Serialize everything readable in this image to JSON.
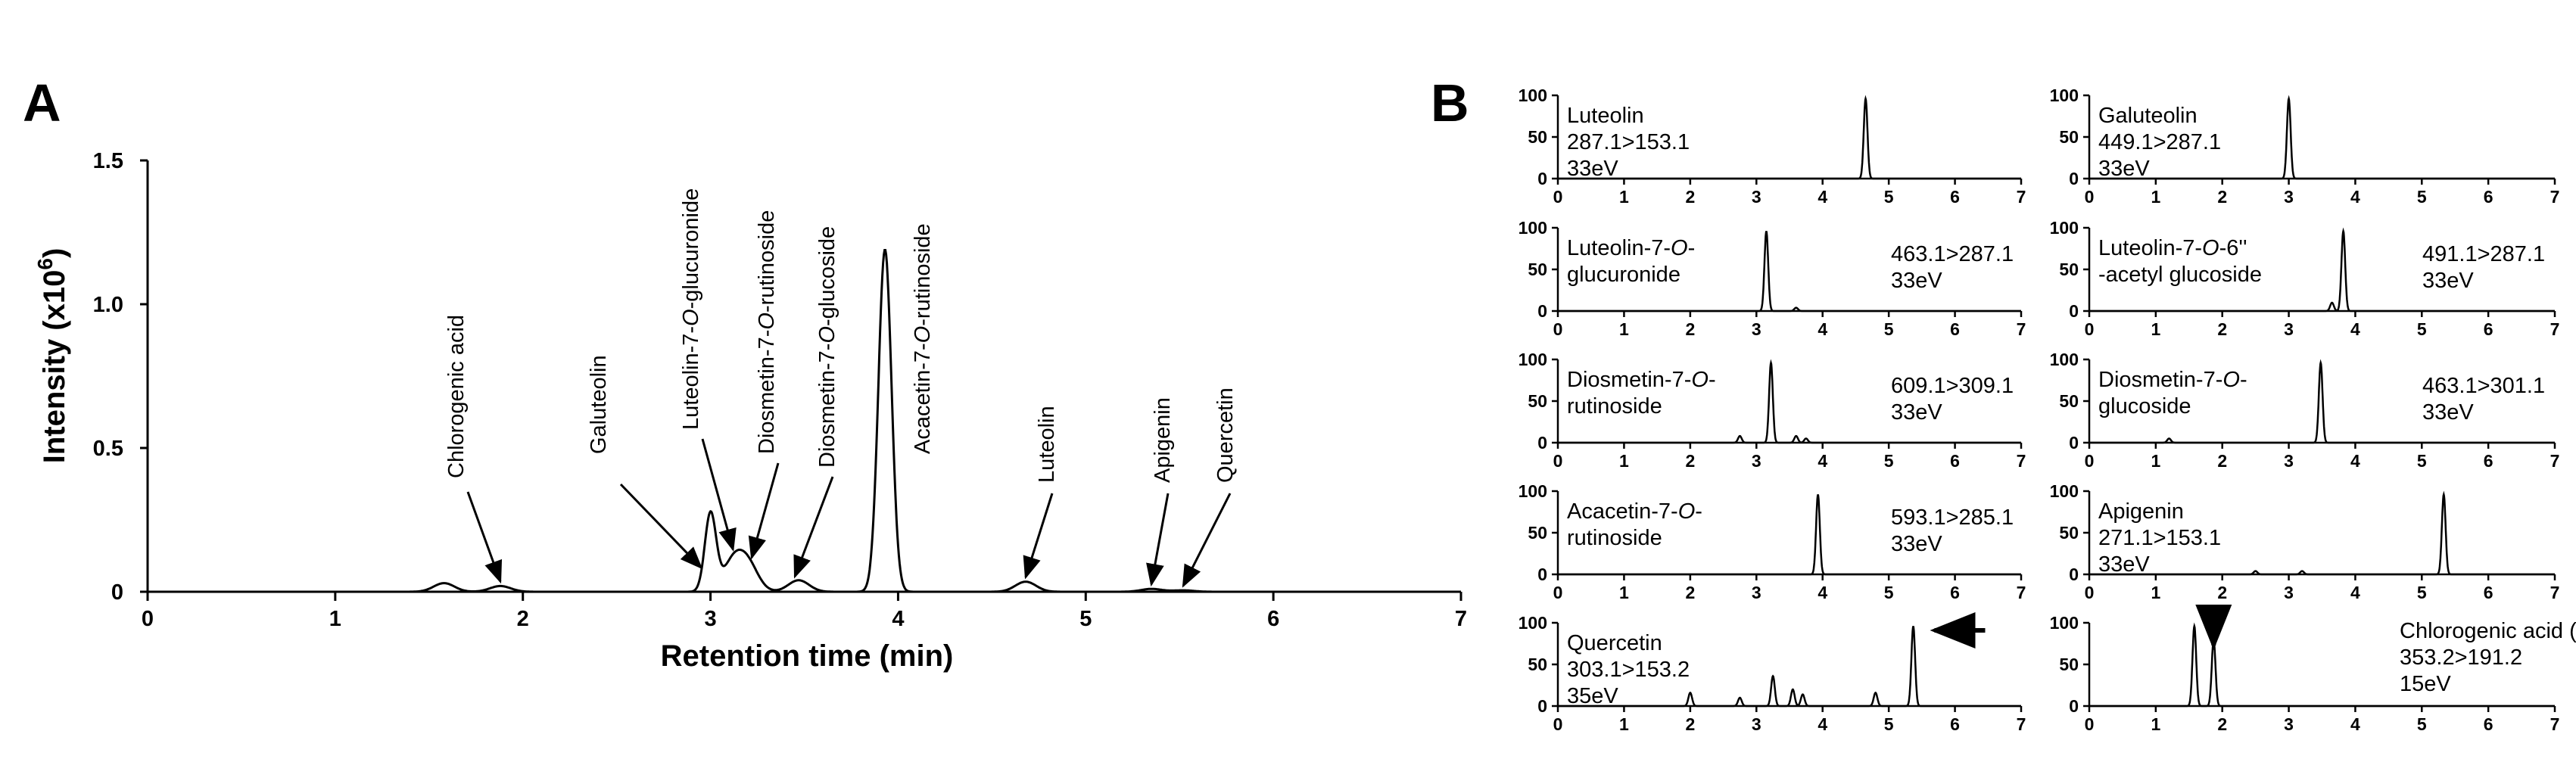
{
  "panels": {
    "a": {
      "letter": "A",
      "chart_data": {
        "type": "line",
        "title": "",
        "xlabel": "Retention time (min)",
        "ylabel": "Intensity (x10",
        "ylabel_sup": "6",
        "ylabel_close": ")",
        "xlim": [
          0,
          7
        ],
        "ylim": [
          0,
          1.5
        ],
        "x_ticks": [
          "0",
          "1",
          "2",
          "3",
          "4",
          "5",
          "6",
          "7"
        ],
        "y_ticks": [
          "0",
          "0.5",
          "1.0",
          "1.5"
        ],
        "grid": false,
        "peaks": [
          {
            "name": "Chlorogenic acid",
            "rt": 1.58,
            "height": 0.03
          },
          {
            "name": "Chlorogenic acid (2)",
            "rt": 1.88,
            "height": 0.02
          },
          {
            "name": "Galuteolin",
            "rt": 3.0,
            "height": 0.27
          },
          {
            "name": "Luteolin-7-O-glucuronide",
            "rt": 3.12,
            "height": 0.1
          },
          {
            "name": "Diosmetin-7-O-rutinoside",
            "rt": 3.2,
            "height": 0.09
          },
          {
            "name": "Diosmetin-7-O-glucoside",
            "rt": 3.47,
            "height": 0.04
          },
          {
            "name": "Acacetin-7-O-rutinoside",
            "rt": 3.93,
            "height": 1.19
          },
          {
            "name": "Luteolin",
            "rt": 4.68,
            "height": 0.035
          },
          {
            "name": "Apigenin",
            "rt": 5.35,
            "height": 0.01
          },
          {
            "name": "Quercetin",
            "rt": 5.52,
            "height": 0.005
          }
        ],
        "annotations": [
          {
            "label": "Chlorogenic acid",
            "target_rt": 1.88
          },
          {
            "label": "Galuteolin",
            "target_rt": 2.95
          },
          {
            "label": "Luteolin-7-O-glucuronide",
            "target_rt": 3.12
          },
          {
            "label": "Diosmetin-7-O-rutinoside",
            "target_rt": 3.22
          },
          {
            "label": "Diosmetin-7-O-glucoside",
            "target_rt": 3.45
          },
          {
            "label": "Acacetin-7-O-rutinoside",
            "target_rt": 3.93
          },
          {
            "label": "Luteolin",
            "target_rt": 4.68
          },
          {
            "label": "Apigenin",
            "target_rt": 5.35
          },
          {
            "label": "Quercetin",
            "target_rt": 5.52
          }
        ]
      }
    },
    "b": {
      "letter": "B",
      "chart_data": [
        {
          "type": "line",
          "compound": [
            "Luteolin"
          ],
          "transition": "287.1>153.1",
          "energy": "33eV",
          "xlim": [
            0,
            7
          ],
          "ylim": [
            0,
            100
          ],
          "y_ticks": [
            "0",
            "50",
            "100"
          ],
          "x_ticks": [
            "0",
            "1",
            "2",
            "3",
            "4",
            "5",
            "6",
            "7"
          ],
          "peaks": [
            {
              "rt": 4.65,
              "height": 96
            }
          ],
          "arrow": null
        },
        {
          "type": "line",
          "compound": [
            "Galuteolin"
          ],
          "transition": "449.1>287.1",
          "energy": "33eV",
          "xlim": [
            0,
            7
          ],
          "ylim": [
            0,
            100
          ],
          "y_ticks": [
            "0",
            "50",
            "100"
          ],
          "x_ticks": [
            "0",
            "1",
            "2",
            "3",
            "4",
            "5",
            "6",
            "7"
          ],
          "peaks": [
            {
              "rt": 3.0,
              "height": 96
            }
          ],
          "arrow": null
        },
        {
          "type": "line",
          "compound": [
            "Luteolin-7-O-",
            "glucuronide"
          ],
          "transition": "463.1>287.1",
          "energy": "33eV",
          "xlim": [
            0,
            7
          ],
          "ylim": [
            0,
            100
          ],
          "y_ticks": [
            "0",
            "50",
            "100"
          ],
          "x_ticks": [
            "0",
            "1",
            "2",
            "3",
            "4",
            "5",
            "6",
            "7"
          ],
          "peaks": [
            {
              "rt": 3.15,
              "height": 96
            },
            {
              "rt": 3.6,
              "height": 4
            }
          ],
          "arrow": null
        },
        {
          "type": "line",
          "compound": [
            "Luteolin-7-O-6''",
            "-acetyl glucoside"
          ],
          "transition": "491.1>287.1",
          "energy": "33eV",
          "xlim": [
            0,
            7
          ],
          "ylim": [
            0,
            100
          ],
          "y_ticks": [
            "0",
            "50",
            "100"
          ],
          "x_ticks": [
            "0",
            "1",
            "2",
            "3",
            "4",
            "5",
            "6",
            "7"
          ],
          "peaks": [
            {
              "rt": 3.82,
              "height": 96
            },
            {
              "rt": 3.65,
              "height": 10
            }
          ],
          "arrow": null
        },
        {
          "type": "line",
          "compound": [
            "Diosmetin-7-O-",
            "rutinoside"
          ],
          "transition": "609.1>309.1",
          "energy": "33eV",
          "xlim": [
            0,
            7
          ],
          "ylim": [
            0,
            100
          ],
          "y_ticks": [
            "0",
            "50",
            "100"
          ],
          "x_ticks": [
            "0",
            "1",
            "2",
            "3",
            "4",
            "5",
            "6",
            "7"
          ],
          "peaks": [
            {
              "rt": 3.22,
              "height": 96
            },
            {
              "rt": 2.75,
              "height": 8
            },
            {
              "rt": 3.6,
              "height": 8
            },
            {
              "rt": 3.75,
              "height": 5
            }
          ],
          "arrow": null
        },
        {
          "type": "line",
          "compound": [
            "Diosmetin-7-O-",
            "glucoside"
          ],
          "transition": "463.1>301.1",
          "energy": "33eV",
          "xlim": [
            0,
            7
          ],
          "ylim": [
            0,
            100
          ],
          "y_ticks": [
            "0",
            "50",
            "100"
          ],
          "x_ticks": [
            "0",
            "1",
            "2",
            "3",
            "4",
            "5",
            "6",
            "7"
          ],
          "peaks": [
            {
              "rt": 3.48,
              "height": 96
            },
            {
              "rt": 1.2,
              "height": 5
            }
          ],
          "arrow": null
        },
        {
          "type": "line",
          "compound": [
            "Acacetin-7-O-",
            "rutinoside"
          ],
          "transition": "593.1>285.1",
          "energy": "33eV",
          "xlim": [
            0,
            7
          ],
          "ylim": [
            0,
            100
          ],
          "y_ticks": [
            "0",
            "50",
            "100"
          ],
          "x_ticks": [
            "0",
            "1",
            "2",
            "3",
            "4",
            "5",
            "6",
            "7"
          ],
          "peaks": [
            {
              "rt": 3.93,
              "height": 96
            }
          ],
          "arrow": null
        },
        {
          "type": "line",
          "compound": [
            "Apigenin"
          ],
          "transition": "271.1>153.1",
          "energy": "33eV",
          "xlim": [
            0,
            7
          ],
          "ylim": [
            0,
            100
          ],
          "y_ticks": [
            "0",
            "50",
            "100"
          ],
          "x_ticks": [
            "0",
            "1",
            "2",
            "3",
            "4",
            "5",
            "6",
            "7"
          ],
          "peaks": [
            {
              "rt": 5.33,
              "height": 96
            },
            {
              "rt": 2.5,
              "height": 4
            },
            {
              "rt": 3.2,
              "height": 4
            }
          ],
          "arrow": null
        },
        {
          "type": "line",
          "compound": [
            "Quercetin"
          ],
          "transition": "303.1>153.2",
          "energy": "35eV",
          "xlim": [
            0,
            7
          ],
          "ylim": [
            0,
            100
          ],
          "y_ticks": [
            "0",
            "50",
            "100"
          ],
          "x_ticks": [
            "0",
            "1",
            "2",
            "3",
            "4",
            "5",
            "6",
            "7"
          ],
          "peaks": [
            {
              "rt": 5.37,
              "height": 96
            },
            {
              "rt": 2.0,
              "height": 16
            },
            {
              "rt": 2.75,
              "height": 10
            },
            {
              "rt": 3.25,
              "height": 36
            },
            {
              "rt": 3.55,
              "height": 20
            },
            {
              "rt": 3.7,
              "height": 14
            },
            {
              "rt": 4.8,
              "height": 16
            }
          ],
          "arrow": {
            "rt": 5.37,
            "direction": "left"
          }
        },
        {
          "type": "line",
          "compound": [
            "Chlorogenic acid (-)"
          ],
          "transition": "353.2>191.2",
          "energy": "15eV",
          "xlim": [
            0,
            7
          ],
          "ylim": [
            0,
            100
          ],
          "y_ticks": [
            "0",
            "50",
            "100"
          ],
          "x_ticks": [
            "0",
            "1",
            "2",
            "3",
            "4",
            "5",
            "6",
            "7"
          ],
          "peaks": [
            {
              "rt": 1.58,
              "height": 96
            },
            {
              "rt": 1.87,
              "height": 80
            }
          ],
          "arrow": {
            "rt": 1.87,
            "direction": "down"
          }
        }
      ]
    }
  }
}
